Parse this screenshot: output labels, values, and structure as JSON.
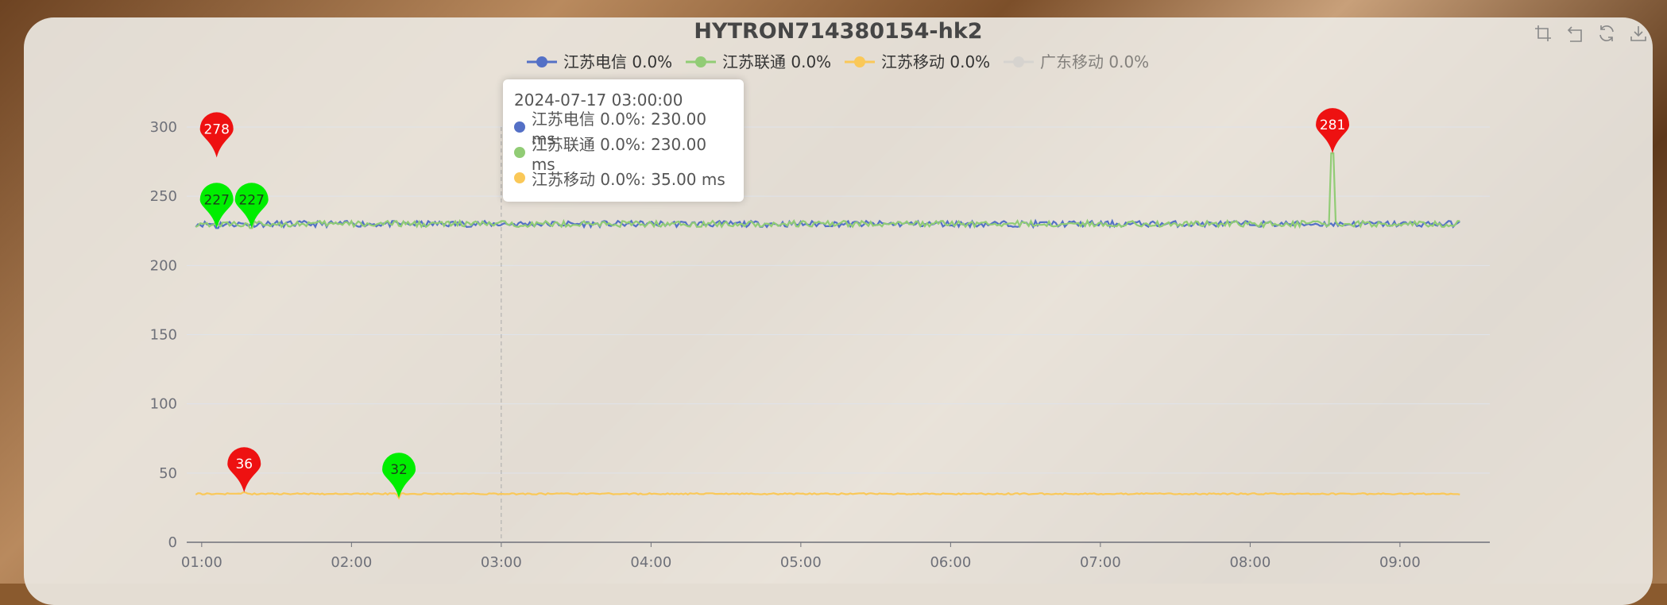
{
  "chart_data": {
    "type": "line",
    "title": "HYTRON714380154-hk2",
    "xlabel": "",
    "ylabel": "",
    "x_start_hour": 0.9,
    "x_end_hour": 9.6,
    "x_ticks": [
      "01:00",
      "02:00",
      "03:00",
      "04:00",
      "05:00",
      "06:00",
      "07:00",
      "08:00",
      "09:00"
    ],
    "ylim": [
      0,
      300
    ],
    "y_ticks": [
      0,
      50,
      100,
      150,
      200,
      250,
      300
    ],
    "grid": true,
    "legend_position": "top-center",
    "series": [
      {
        "name": "江苏电信 0.0%",
        "color": "#5470c6",
        "baseline": 230,
        "visible": true,
        "markers": [
          {
            "type": "max",
            "value": 278,
            "time": "01:06",
            "color": "#ee1111"
          },
          {
            "type": "min",
            "value": 227,
            "time": "01:06",
            "color": "#00ee00"
          }
        ]
      },
      {
        "name": "江苏联通 0.0%",
        "color": "#91cc75",
        "baseline": 230,
        "visible": true,
        "markers": [
          {
            "type": "max",
            "value": 281,
            "time": "08:33",
            "color": "#ee1111"
          },
          {
            "type": "min",
            "value": 227,
            "time": "01:20",
            "color": "#00ee00"
          }
        ]
      },
      {
        "name": "江苏移动 0.0%",
        "color": "#fac858",
        "baseline": 35,
        "visible": true,
        "markers": [
          {
            "type": "max",
            "value": 36,
            "time": "01:17",
            "color": "#ee1111"
          },
          {
            "type": "min",
            "value": 32,
            "time": "02:19",
            "color": "#00ee00"
          }
        ]
      },
      {
        "name": "广东移动 0.0%",
        "color": "#cccccc",
        "visible": false
      }
    ],
    "tooltip": {
      "time": "2024-07-17 03:00:00",
      "rows": [
        {
          "label": "江苏电信 0.0%: 230.00 ms",
          "color": "#5470c6"
        },
        {
          "label": "江苏联通 0.0%: 230.00 ms",
          "color": "#91cc75"
        },
        {
          "label": "江苏移动 0.0%: 35.00 ms",
          "color": "#fac858"
        }
      ]
    }
  },
  "toolbox": {
    "icons": [
      "zoom-icon",
      "zoom-reset-icon",
      "restore-icon",
      "save-image-icon"
    ]
  }
}
